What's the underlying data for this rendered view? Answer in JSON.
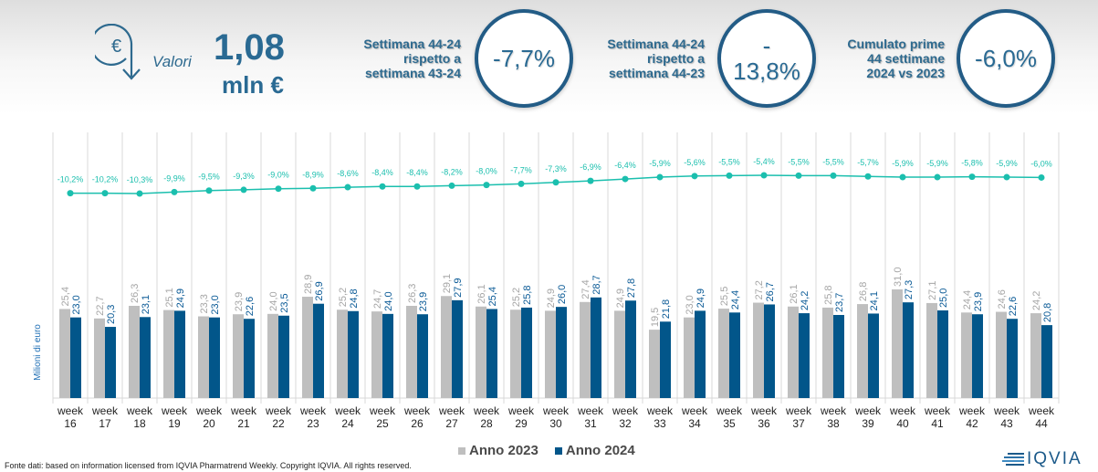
{
  "header": {
    "icon": "euro-down-arrow-icon",
    "valori_label": "Valori",
    "value": "1,08",
    "unit": "mln €",
    "kpis": [
      {
        "label_lines": [
          "Settimana 44-24",
          "rispetto a",
          "settimana 43-24"
        ],
        "value_lines": [
          "-7,7%"
        ]
      },
      {
        "label_lines": [
          "Settimana 44-24",
          "rispetto a",
          "settimana 44-23"
        ],
        "value_lines": [
          "-",
          "13,8%"
        ]
      },
      {
        "label_lines": [
          "Cumulato prime",
          "44 settimane",
          "2024 vs 2023"
        ],
        "value_lines": [
          "-6,0%"
        ]
      }
    ]
  },
  "colors": {
    "anno2023": "#bfbfbf",
    "anno2024": "#02568a",
    "line": "#1bbfae",
    "label2023": "#a6a6a6",
    "label2024": "#0a5a96",
    "axis_title": "#1f6fb5"
  },
  "chart_data": {
    "type": "bar",
    "title": "",
    "xlabel": "",
    "ylabel": "Milioni di euro",
    "ylim": [
      0,
      31
    ],
    "grid": true,
    "legend_position": "bottom",
    "categories": [
      "week 16",
      "week 17",
      "week 18",
      "week 19",
      "week 20",
      "week 21",
      "week 22",
      "week 23",
      "week 24",
      "week 25",
      "week 26",
      "week 27",
      "week 28",
      "week 29",
      "week 30",
      "week 31",
      "week 32",
      "week 33",
      "week 34",
      "week 35",
      "week 36",
      "week 37",
      "week 38",
      "week 39",
      "week 40",
      "week 41",
      "week 42",
      "week 43",
      "week 44"
    ],
    "series": [
      {
        "name": "Anno 2023",
        "values": [
          25.4,
          22.7,
          26.3,
          25.1,
          23.3,
          23.9,
          24.0,
          28.9,
          25.2,
          24.7,
          26.3,
          29.1,
          26.1,
          25.2,
          24.9,
          27.4,
          24.9,
          19.5,
          23.0,
          25.5,
          27.2,
          26.1,
          25.8,
          26.8,
          31.0,
          27.1,
          24.4,
          24.6,
          24.2
        ],
        "labels": [
          "25,4",
          "22,7",
          "26,3",
          "25,1",
          "23,3",
          "23,9",
          "24,0",
          "28,9",
          "25,2",
          "24,7",
          "26,3",
          "29,1",
          "26,1",
          "25,2",
          "24,9",
          "27,4",
          "24,9",
          "19,5",
          "23,0",
          "25,5",
          "27,2",
          "26,1",
          "25,8",
          "26,8",
          "31,0",
          "27,1",
          "24,4",
          "24,6",
          "24,2"
        ]
      },
      {
        "name": "Anno 2024",
        "values": [
          23.0,
          20.3,
          23.1,
          24.9,
          23.0,
          22.6,
          23.5,
          26.9,
          24.8,
          24.0,
          23.9,
          27.9,
          25.4,
          25.8,
          26.0,
          28.7,
          27.8,
          21.8,
          24.9,
          24.4,
          26.7,
          24.2,
          23.7,
          24.1,
          27.3,
          25.0,
          23.9,
          22.6,
          20.8
        ],
        "labels": [
          "23,0",
          "20,3",
          "23,1",
          "24,9",
          "23,0",
          "22,6",
          "23,5",
          "26,9",
          "24,8",
          "24,0",
          "23,9",
          "27,9",
          "25,4",
          "25,8",
          "26,0",
          "28,7",
          "27,8",
          "21,8",
          "24,9",
          "24,4",
          "26,7",
          "24,2",
          "23,7",
          "24,1",
          "27,3",
          "25,0",
          "23,9",
          "22,6",
          "20,8"
        ]
      }
    ],
    "cumulative_line": {
      "name": "Cumulato 2024 vs 2023",
      "values": [
        -10.2,
        -10.2,
        -10.3,
        -9.9,
        -9.5,
        -9.3,
        -9.0,
        -8.9,
        -8.6,
        -8.4,
        -8.4,
        -8.2,
        -8.0,
        -7.7,
        -7.3,
        -6.9,
        -6.4,
        -5.9,
        -5.6,
        -5.5,
        -5.4,
        -5.5,
        -5.5,
        -5.7,
        -5.9,
        -5.9,
        -5.8,
        -5.9,
        -6.0
      ],
      "labels": [
        "-10,2%",
        "-10,2%",
        "-10,3%",
        "-9,9%",
        "-9,5%",
        "-9,3%",
        "-9,0%",
        "-8,9%",
        "-8,6%",
        "-8,4%",
        "-8,4%",
        "-8,2%",
        "-8,0%",
        "-7,7%",
        "-7,3%",
        "-6,9%",
        "-6,4%",
        "-5,9%",
        "-5,6%",
        "-5,5%",
        "-5,4%",
        "-5,5%",
        "-5,5%",
        "-5,7%",
        "-5,9%",
        "-5,9%",
        "-5,8%",
        "-5,9%",
        "-6,0%"
      ]
    },
    "tick_lines": [
      [
        "week",
        "16"
      ],
      [
        "week",
        "17"
      ],
      [
        "week",
        "18"
      ],
      [
        "week",
        "19"
      ],
      [
        "week",
        "20"
      ],
      [
        "week",
        "21"
      ],
      [
        "week",
        "22"
      ],
      [
        "week",
        "23"
      ],
      [
        "week",
        "24"
      ],
      [
        "week",
        "25"
      ],
      [
        "week",
        "26"
      ],
      [
        "week",
        "27"
      ],
      [
        "week",
        "28"
      ],
      [
        "week",
        "29"
      ],
      [
        "week",
        "30"
      ],
      [
        "week",
        "31"
      ],
      [
        "week",
        "32"
      ],
      [
        "week",
        "33"
      ],
      [
        "week",
        "34"
      ],
      [
        "week",
        "35"
      ],
      [
        "week",
        "36"
      ],
      [
        "week",
        "37"
      ],
      [
        "week",
        "38"
      ],
      [
        "week",
        "39"
      ],
      [
        "week",
        "40"
      ],
      [
        "week",
        "41"
      ],
      [
        "week",
        "42"
      ],
      [
        "week",
        "43"
      ],
      [
        "week",
        "44"
      ]
    ]
  },
  "legend": {
    "items": [
      "Anno 2023",
      "Anno 2024"
    ]
  },
  "footer": {
    "source": "Fonte dati: based on information licensed from IQVIA Pharmatrend Weekly. Copyright IQVIA. All rights reserved.",
    "logo_text": "IQVIA"
  }
}
